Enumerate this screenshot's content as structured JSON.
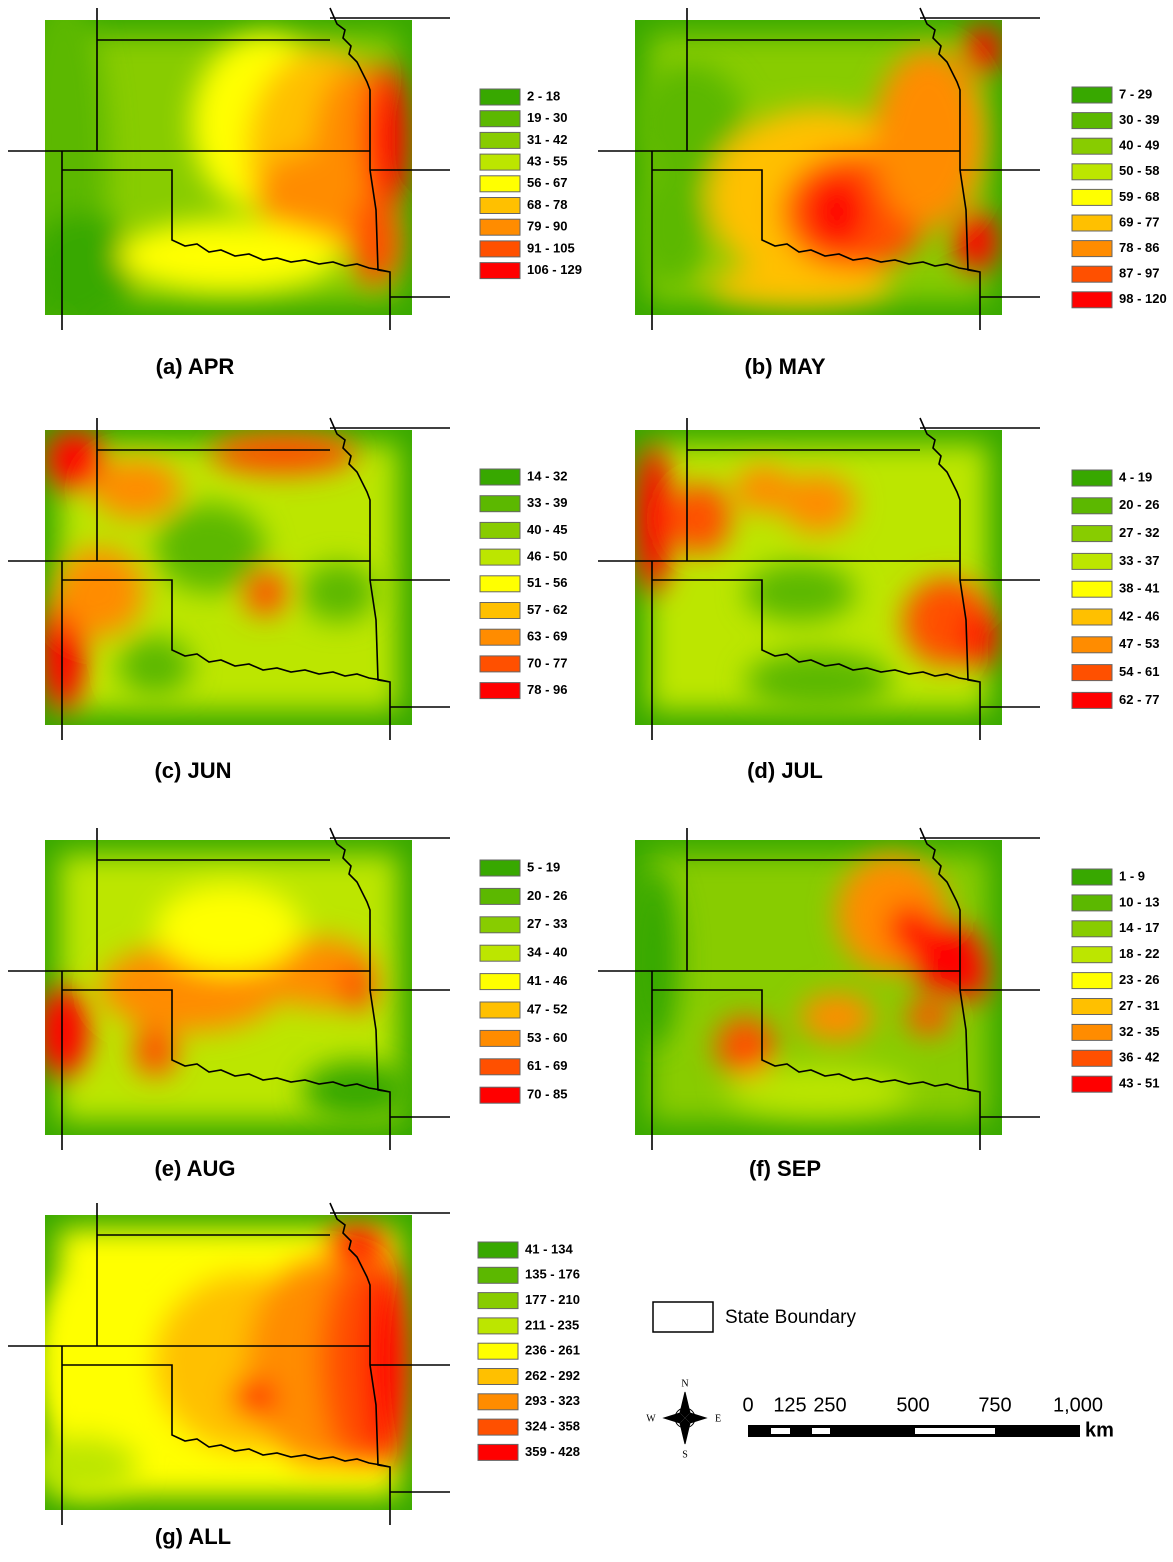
{
  "panels": [
    {
      "caption": "(a) APR",
      "legend": [
        "2 - 18",
        "19 - 30",
        "31 - 42",
        "43 - 55",
        "56 - 67",
        "68 - 78",
        "79 - 90",
        "91 - 105",
        "106 - 129"
      ]
    },
    {
      "caption": "(b) MAY",
      "legend": [
        "7 - 29",
        "30 - 39",
        "40 - 49",
        "50 - 58",
        "59 - 68",
        "69 - 77",
        "78 - 86",
        "87 - 97",
        "98 - 120"
      ]
    },
    {
      "caption": "(c) JUN",
      "legend": [
        "14 - 32",
        "33 - 39",
        "40 - 45",
        "46 - 50",
        "51 - 56",
        "57 - 62",
        "63 - 69",
        "70 - 77",
        "78 - 96"
      ]
    },
    {
      "caption": "(d) JUL",
      "legend": [
        "4 - 19",
        "20 - 26",
        "27 - 32",
        "33 - 37",
        "38 - 41",
        "42 - 46",
        "47 - 53",
        "54 - 61",
        "62 - 77"
      ]
    },
    {
      "caption": "(e) AUG",
      "legend": [
        "5 - 19",
        "20 - 26",
        "27 - 33",
        "34 - 40",
        "41 - 46",
        "47 - 52",
        "53 - 60",
        "61 - 69",
        "70 - 85"
      ]
    },
    {
      "caption": "(f) SEP",
      "legend": [
        "1 - 9",
        "10 - 13",
        "14 - 17",
        "18 - 22",
        "23 - 26",
        "27 - 31",
        "32 - 35",
        "36 - 42",
        "43 - 51"
      ]
    },
    {
      "caption": "(g) ALL",
      "legend": [
        "41 - 134",
        "135 - 176",
        "177 - 210",
        "211 - 235",
        "236 - 261",
        "262 - 292",
        "293 - 323",
        "324 - 358",
        "359 - 428"
      ]
    }
  ],
  "legend_colors": [
    "#38a800",
    "#5cb800",
    "#88cc00",
    "#bce600",
    "#ffff00",
    "#ffc000",
    "#ff8c00",
    "#ff5000",
    "#ff0000"
  ],
  "boundary_legend": "State Boundary",
  "compass": {
    "n": "N",
    "s": "S",
    "e": "E",
    "w": "W"
  },
  "scale_bar": {
    "labels": [
      "0",
      "125",
      "250",
      "500",
      "750",
      "1,000"
    ],
    "unit": "km"
  }
}
